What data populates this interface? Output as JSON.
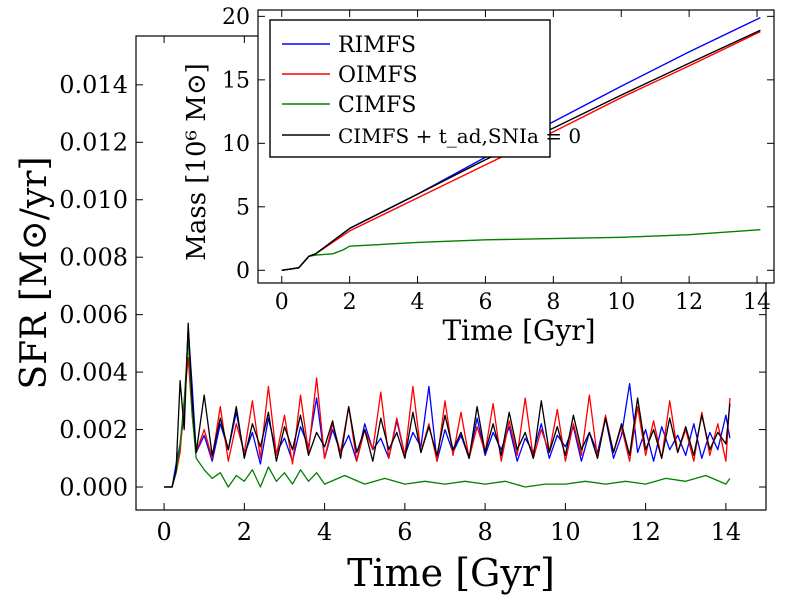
{
  "chart_data": [
    {
      "type": "line",
      "xlabel": "Time [Gyr]",
      "ylabel": "SFR [M⊙/yr]",
      "xlim": [
        -0.7,
        15.0
      ],
      "ylim": [
        -0.0008,
        0.0157
      ],
      "xticks": [
        0,
        2,
        4,
        6,
        8,
        10,
        12,
        14
      ],
      "yticks": [
        0.0,
        0.002,
        0.004,
        0.006,
        0.008,
        0.01,
        0.012,
        0.014
      ],
      "ytick_labels": [
        "0.000",
        "0.002",
        "0.004",
        "0.006",
        "0.008",
        "0.010",
        "0.012",
        "0.014"
      ],
      "series": [
        {
          "color": "#0000ff",
          "x": [
            0.0,
            0.2,
            0.3,
            0.4,
            0.5,
            0.6,
            0.7,
            0.8,
            1.0,
            1.2,
            1.4,
            1.6,
            1.8,
            2.0,
            2.2,
            2.4,
            2.6,
            2.8,
            3.0,
            3.2,
            3.4,
            3.6,
            3.8,
            4.0,
            4.2,
            4.4,
            4.6,
            4.8,
            5.0,
            5.2,
            5.4,
            5.6,
            5.8,
            6.0,
            6.2,
            6.4,
            6.6,
            6.8,
            7.0,
            7.2,
            7.4,
            7.6,
            7.8,
            8.0,
            8.2,
            8.4,
            8.6,
            8.8,
            9.0,
            9.2,
            9.4,
            9.6,
            9.8,
            10.0,
            10.2,
            10.4,
            10.6,
            10.8,
            11.0,
            11.2,
            11.4,
            11.6,
            11.8,
            12.0,
            12.2,
            12.4,
            12.6,
            12.8,
            13.0,
            13.2,
            13.4,
            13.6,
            13.8,
            14.0,
            14.1
          ],
          "values": [
            0.0,
            0.0,
            0.0008,
            0.0015,
            0.0025,
            0.0055,
            0.0035,
            0.0012,
            0.0018,
            0.0009,
            0.0022,
            0.0013,
            0.0026,
            0.0011,
            0.0019,
            0.0008,
            0.0024,
            0.0012,
            0.0017,
            0.0009,
            0.0021,
            0.0014,
            0.0031,
            0.001,
            0.002,
            0.0012,
            0.0018,
            0.0009,
            0.0022,
            0.0013,
            0.0017,
            0.001,
            0.0023,
            0.0011,
            0.0019,
            0.0014,
            0.0035,
            0.0009,
            0.002,
            0.0012,
            0.0018,
            0.001,
            0.0024,
            0.0011,
            0.0019,
            0.0013,
            0.0021,
            0.0009,
            0.0017,
            0.0012,
            0.0022,
            0.001,
            0.0018,
            0.0014,
            0.0021,
            0.0009,
            0.0019,
            0.0012,
            0.0024,
            0.001,
            0.0018,
            0.0036,
            0.0012,
            0.002,
            0.0009,
            0.0021,
            0.0013,
            0.0018,
            0.0011,
            0.0022,
            0.001,
            0.0019,
            0.0013,
            0.0025,
            0.0017
          ]
        },
        {
          "color": "#ff0000",
          "x": [
            0.0,
            0.2,
            0.3,
            0.4,
            0.5,
            0.6,
            0.7,
            0.8,
            1.0,
            1.2,
            1.4,
            1.6,
            1.8,
            2.0,
            2.2,
            2.4,
            2.6,
            2.8,
            3.0,
            3.2,
            3.4,
            3.6,
            3.8,
            4.0,
            4.2,
            4.4,
            4.6,
            4.8,
            5.0,
            5.2,
            5.4,
            5.6,
            5.8,
            6.0,
            6.2,
            6.4,
            6.6,
            6.8,
            7.0,
            7.2,
            7.4,
            7.6,
            7.8,
            8.0,
            8.2,
            8.4,
            8.6,
            8.8,
            9.0,
            9.2,
            9.4,
            9.6,
            9.8,
            10.0,
            10.2,
            10.4,
            10.6,
            10.8,
            11.0,
            11.2,
            11.4,
            11.6,
            11.8,
            12.0,
            12.2,
            12.4,
            12.6,
            12.8,
            13.0,
            13.2,
            13.4,
            13.6,
            13.8,
            14.0,
            14.1
          ],
          "values": [
            0.0,
            0.0,
            0.0005,
            0.0012,
            0.003,
            0.0045,
            0.0025,
            0.0012,
            0.002,
            0.001,
            0.0028,
            0.0009,
            0.0022,
            0.0012,
            0.003,
            0.001,
            0.0035,
            0.0011,
            0.0025,
            0.0008,
            0.0032,
            0.0012,
            0.0038,
            0.001,
            0.0022,
            0.0012,
            0.0028,
            0.0009,
            0.002,
            0.0013,
            0.0033,
            0.001,
            0.0024,
            0.0011,
            0.0035,
            0.0012,
            0.0022,
            0.0009,
            0.003,
            0.0011,
            0.0026,
            0.001,
            0.0021,
            0.0012,
            0.0029,
            0.0009,
            0.0023,
            0.0011,
            0.0031,
            0.001,
            0.002,
            0.0012,
            0.0027,
            0.0009,
            0.0022,
            0.0011,
            0.0032,
            0.001,
            0.0025,
            0.0012,
            0.0021,
            0.0009,
            0.0028,
            0.0011,
            0.0023,
            0.001,
            0.003,
            0.0012,
            0.002,
            0.0009,
            0.0026,
            0.0011,
            0.0022,
            0.0009,
            0.0031
          ]
        },
        {
          "color": "#008000",
          "x": [
            0.0,
            0.2,
            0.3,
            0.4,
            0.5,
            0.6,
            0.7,
            0.8,
            1.0,
            1.2,
            1.4,
            1.6,
            1.8,
            2.0,
            2.2,
            2.4,
            2.6,
            2.8,
            3.0,
            3.2,
            3.4,
            3.6,
            3.8,
            4.0,
            4.5,
            5.0,
            5.5,
            6.0,
            6.5,
            7.0,
            7.5,
            8.0,
            8.5,
            9.0,
            9.5,
            10.0,
            10.5,
            11.0,
            11.5,
            12.0,
            12.5,
            13.0,
            13.5,
            14.0,
            14.1
          ],
          "values": [
            0.0,
            0.0,
            0.0005,
            0.0015,
            0.003,
            0.0052,
            0.0025,
            0.001,
            0.0006,
            0.0003,
            0.0005,
            0.0,
            0.0004,
            0.0002,
            0.0006,
            0.0,
            0.0007,
            0.0002,
            0.0005,
            0.0001,
            0.0006,
            0.0002,
            0.0005,
            0.0001,
            0.0004,
            0.0001,
            0.0003,
            0.0001,
            0.0002,
            0.0001,
            0.0002,
            0.0001,
            0.0002,
            0.0,
            0.0001,
            0.0001,
            0.0002,
            0.0001,
            0.0002,
            0.0001,
            0.0003,
            0.0002,
            0.0004,
            0.0001,
            0.0003
          ]
        },
        {
          "color": "#000000",
          "x": [
            0.0,
            0.2,
            0.3,
            0.4,
            0.5,
            0.6,
            0.7,
            0.8,
            1.0,
            1.2,
            1.4,
            1.6,
            1.8,
            2.0,
            2.2,
            2.4,
            2.6,
            2.8,
            3.0,
            3.2,
            3.4,
            3.6,
            3.8,
            4.0,
            4.2,
            4.4,
            4.6,
            4.8,
            5.0,
            5.2,
            5.4,
            5.6,
            5.8,
            6.0,
            6.2,
            6.4,
            6.6,
            6.8,
            7.0,
            7.2,
            7.4,
            7.6,
            7.8,
            8.0,
            8.2,
            8.4,
            8.6,
            8.8,
            9.0,
            9.2,
            9.4,
            9.6,
            9.8,
            10.0,
            10.2,
            10.4,
            10.6,
            10.8,
            11.0,
            11.2,
            11.4,
            11.6,
            11.8,
            12.0,
            12.2,
            12.4,
            12.6,
            12.8,
            13.0,
            13.2,
            13.4,
            13.6,
            13.8,
            14.0,
            14.1
          ],
          "values": [
            0.0,
            0.0,
            0.0006,
            0.0037,
            0.002,
            0.0057,
            0.003,
            0.0012,
            0.0032,
            0.0011,
            0.0024,
            0.0013,
            0.0028,
            0.001,
            0.0022,
            0.0014,
            0.0026,
            0.0009,
            0.0021,
            0.0013,
            0.0025,
            0.0011,
            0.0019,
            0.0014,
            0.0023,
            0.001,
            0.0028,
            0.0012,
            0.002,
            0.0009,
            0.0024,
            0.0013,
            0.0019,
            0.001,
            0.0026,
            0.0012,
            0.0021,
            0.0011,
            0.0025,
            0.0013,
            0.0019,
            0.001,
            0.0028,
            0.0012,
            0.0022,
            0.0011,
            0.0026,
            0.0013,
            0.0019,
            0.001,
            0.003,
            0.0012,
            0.0021,
            0.0011,
            0.0025,
            0.0013,
            0.0019,
            0.001,
            0.0024,
            0.0012,
            0.0022,
            0.0011,
            0.0031,
            0.0013,
            0.002,
            0.001,
            0.0024,
            0.0012,
            0.0021,
            0.0011,
            0.0025,
            0.0013,
            0.0019,
            0.0015,
            0.0029
          ]
        }
      ]
    },
    {
      "type": "line",
      "xlabel": "Time [Gyr]",
      "ylabel": "Mass [10⁶ M⊙]",
      "xlim": [
        -0.7,
        14.5
      ],
      "ylim": [
        -1.0,
        20.5
      ],
      "xticks": [
        0,
        2,
        4,
        6,
        8,
        10,
        12,
        14
      ],
      "yticks": [
        0,
        5,
        10,
        15,
        20
      ],
      "legend": {
        "placement": "top-left"
      },
      "series": [
        {
          "name": "RIMFS",
          "color": "#0000ff",
          "x": [
            0,
            0.5,
            0.7,
            0.8,
            1.0,
            2.0,
            4.0,
            6.0,
            8.0,
            10.0,
            12.0,
            14.1
          ],
          "values": [
            0,
            0.2,
            0.8,
            1.1,
            1.3,
            3.3,
            6.0,
            8.9,
            11.7,
            14.5,
            17.2,
            19.9
          ]
        },
        {
          "name": "OIMFS",
          "color": "#ff0000",
          "x": [
            0,
            0.5,
            0.7,
            0.8,
            1.0,
            2.0,
            4.0,
            6.0,
            8.0,
            10.0,
            12.0,
            14.1
          ],
          "values": [
            0,
            0.2,
            0.8,
            1.1,
            1.3,
            3.1,
            5.7,
            8.3,
            10.9,
            13.6,
            16.1,
            18.8
          ]
        },
        {
          "name": "CIMFS",
          "color": "#008000",
          "x": [
            0,
            0.5,
            0.7,
            0.8,
            1.0,
            1.5,
            1.8,
            2.0,
            4.0,
            6.0,
            8.0,
            10.0,
            12.0,
            14.1
          ],
          "values": [
            0,
            0.2,
            0.8,
            1.1,
            1.2,
            1.3,
            1.6,
            1.9,
            2.2,
            2.4,
            2.5,
            2.6,
            2.8,
            3.2
          ]
        },
        {
          "name": "CIMFS + t_ad,SNIa = 0",
          "color": "#000000",
          "x": [
            0,
            0.5,
            0.7,
            0.8,
            1.0,
            2.0,
            4.0,
            6.0,
            8.0,
            10.0,
            12.0,
            14.1
          ],
          "values": [
            0,
            0.2,
            0.8,
            1.1,
            1.3,
            3.3,
            6.0,
            8.7,
            11.2,
            13.8,
            16.3,
            18.9
          ]
        }
      ]
    }
  ]
}
